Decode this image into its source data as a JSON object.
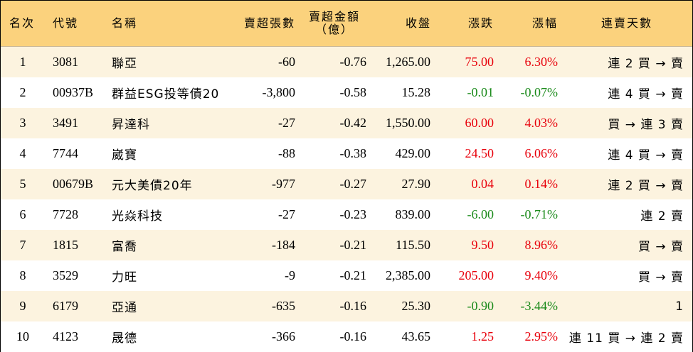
{
  "colors": {
    "header_bg": "#fbd27d",
    "row_alt_bg": "#fcf3df",
    "up": "#e8000b",
    "down": "#1a8a1a"
  },
  "header": {
    "rank": "名次",
    "code": "代號",
    "name": "名稱",
    "net_sell_lots": "賣超張數",
    "net_sell_amount_line1": "賣超金額",
    "net_sell_amount_line2": "（億）",
    "close": "收盤",
    "change": "漲跌",
    "change_pct": "漲幅",
    "streak": "連賣天數"
  },
  "rows": [
    {
      "rank": "1",
      "code": "3081",
      "name": "聯亞",
      "lots": "-60",
      "amount": "-0.76",
      "close": "1,265.00",
      "change": "75.00",
      "pct": "6.30%",
      "dir": "up",
      "streak": "連 2 買 → 賣"
    },
    {
      "rank": "2",
      "code": "00937B",
      "name": "群益ESG投等債20",
      "lots": "-3,800",
      "amount": "-0.58",
      "close": "15.28",
      "change": "-0.01",
      "pct": "-0.07%",
      "dir": "down",
      "streak": "連 4 買 → 賣"
    },
    {
      "rank": "3",
      "code": "3491",
      "name": "昇達科",
      "lots": "-27",
      "amount": "-0.42",
      "close": "1,550.00",
      "change": "60.00",
      "pct": "4.03%",
      "dir": "up",
      "streak": "買 → 連 3 賣"
    },
    {
      "rank": "4",
      "code": "7744",
      "name": "崴寶",
      "lots": "-88",
      "amount": "-0.38",
      "close": "429.00",
      "change": "24.50",
      "pct": "6.06%",
      "dir": "up",
      "streak": "連 4 買 → 賣"
    },
    {
      "rank": "5",
      "code": "00679B",
      "name": "元大美債20年",
      "lots": "-977",
      "amount": "-0.27",
      "close": "27.90",
      "change": "0.04",
      "pct": "0.14%",
      "dir": "up",
      "streak": "連 2 買 → 賣"
    },
    {
      "rank": "6",
      "code": "7728",
      "name": "光焱科技",
      "lots": "-27",
      "amount": "-0.23",
      "close": "839.00",
      "change": "-6.00",
      "pct": "-0.71%",
      "dir": "down",
      "streak": "連 2 賣"
    },
    {
      "rank": "7",
      "code": "1815",
      "name": "富喬",
      "lots": "-184",
      "amount": "-0.21",
      "close": "115.50",
      "change": "9.50",
      "pct": "8.96%",
      "dir": "up",
      "streak": "買 → 賣"
    },
    {
      "rank": "8",
      "code": "3529",
      "name": "力旺",
      "lots": "-9",
      "amount": "-0.21",
      "close": "2,385.00",
      "change": "205.00",
      "pct": "9.40%",
      "dir": "up",
      "streak": "買 → 賣"
    },
    {
      "rank": "9",
      "code": "6179",
      "name": "亞通",
      "lots": "-635",
      "amount": "-0.16",
      "close": "25.30",
      "change": "-0.90",
      "pct": "-3.44%",
      "dir": "down",
      "streak": "1"
    },
    {
      "rank": "10",
      "code": "4123",
      "name": "晟德",
      "lots": "-366",
      "amount": "-0.16",
      "close": "43.65",
      "change": "1.25",
      "pct": "2.95%",
      "dir": "up",
      "streak": "連 11 買 → 連 2 賣"
    }
  ]
}
